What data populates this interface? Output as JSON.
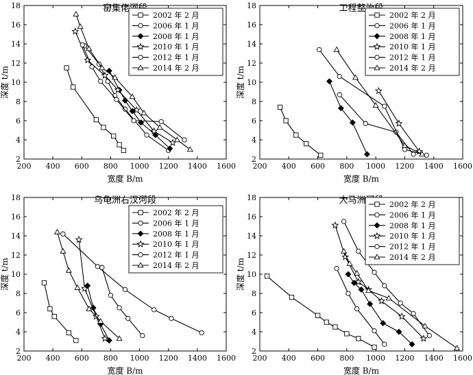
{
  "chart_data": [
    {
      "type": "line",
      "title": "窑集佬河段",
      "xlabel": "宽度 B/m",
      "ylabel": "深度 t/m",
      "xlim": [
        200,
        1600
      ],
      "ylim": [
        2,
        18
      ],
      "xticks": [
        "200",
        "400",
        "600",
        "800",
        "1000",
        "1200",
        "1400",
        "1600"
      ],
      "yticks": [
        "2",
        "4",
        "6",
        "8",
        "10",
        "12",
        "14",
        "16",
        "18"
      ],
      "legend_position": "top-right",
      "series": [
        {
          "name": "2002 年 2 月",
          "marker": "square",
          "x": [
            495,
            540,
            700,
            750,
            820,
            860,
            890
          ],
          "y": [
            11.5,
            9.5,
            6.1,
            5.3,
            4.4,
            3.5,
            2.9
          ]
        },
        {
          "name": "2006 年 1 月",
          "marker": "circle",
          "x": [
            620,
            720,
            780,
            830,
            900,
            1050,
            1200
          ],
          "y": [
            13.8,
            11.9,
            10.1,
            8.6,
            7.2,
            4.5,
            2.9
          ]
        },
        {
          "name": "2008 年 1 月",
          "marker": "diamond",
          "x": [
            790,
            860,
            900,
            950,
            1010,
            1110,
            1210
          ],
          "y": [
            11.2,
            9.2,
            8.1,
            7.0,
            5.8,
            4.5,
            3.1
          ]
        },
        {
          "name": "2010 年 1 月",
          "marker": "star",
          "x": [
            555,
            640,
            760,
            850,
            980,
            1100,
            1230
          ],
          "y": [
            15.3,
            12.3,
            10.7,
            9.2,
            7.1,
            4.9,
            3.7
          ]
        },
        {
          "name": "2012 年 1 月",
          "marker": "circle",
          "x": [
            605,
            670,
            730,
            840,
            960,
            1150,
            1310
          ],
          "y": [
            13.9,
            11.6,
            10.1,
            8.2,
            6.0,
            5.9,
            4.0
          ]
        },
        {
          "name": "2014 年 2 月",
          "marker": "triangle",
          "x": [
            560,
            590,
            650,
            740,
            830,
            950,
            1030,
            1140,
            1260,
            1350
          ],
          "y": [
            17.1,
            15.8,
            13.5,
            11.5,
            10.5,
            8.5,
            6.8,
            5.3,
            4.0,
            3.0
          ]
        }
      ]
    },
    {
      "type": "line",
      "title": "工程整治段",
      "xlabel": "宽度 B/m",
      "ylabel": "深度 t/m",
      "xlim": [
        200,
        1600
      ],
      "ylim": [
        2,
        18
      ],
      "xticks": [
        "200",
        "400",
        "600",
        "800",
        "1000",
        "1200",
        "1400",
        "1600"
      ],
      "yticks": [
        "2",
        "4",
        "6",
        "8",
        "10",
        "12",
        "14",
        "16",
        "18"
      ],
      "legend_position": "top-right",
      "series": [
        {
          "name": "2002 年 2 月",
          "marker": "square",
          "x": [
            340,
            380,
            450,
            520,
            620
          ],
          "y": [
            7.4,
            6.0,
            4.5,
            3.6,
            2.4
          ]
        },
        {
          "name": "2006 年 1 月",
          "marker": "circle",
          "x": [
            750,
            930,
            1140,
            1260
          ],
          "y": [
            8.7,
            5.7,
            4.8,
            2.5
          ]
        },
        {
          "name": "2008 年 1 月",
          "marker": "diamond",
          "x": [
            680,
            760,
            840,
            940
          ],
          "y": [
            10.1,
            7.3,
            5.8,
            2.5
          ]
        },
        {
          "name": "2010 年 1 月",
          "marker": "star",
          "x": [
            1020,
            1160,
            1300
          ],
          "y": [
            9.1,
            5.7,
            2.8
          ]
        },
        {
          "name": "2012 年 1 月",
          "marker": "circle",
          "x": [
            610,
            750,
            1060,
            1200,
            1350
          ],
          "y": [
            13.4,
            10.6,
            7.5,
            3.0,
            2.4
          ]
        },
        {
          "name": "2014 年 2 月",
          "marker": "triangle",
          "x": [
            730,
            860,
            1000,
            1200,
            1320
          ],
          "y": [
            13.4,
            10.5,
            7.6,
            3.4,
            2.5
          ]
        }
      ]
    },
    {
      "type": "line",
      "title": "乌龟洲右汊河段",
      "xlabel": "宽度 B/m",
      "ylabel": "深度 t/m",
      "xlim": [
        200,
        1600
      ],
      "ylim": [
        2,
        18
      ],
      "xticks": [
        "200",
        "400",
        "600",
        "800",
        "1000",
        "1200",
        "1400",
        "1600"
      ],
      "yticks": [
        "2",
        "4",
        "6",
        "8",
        "10",
        "12",
        "14",
        "16",
        "18"
      ],
      "legend_position": "top-right",
      "series": [
        {
          "name": "2002 年 2 月",
          "marker": "square",
          "x": [
            340,
            380,
            410,
            510,
            560
          ],
          "y": [
            9.1,
            6.4,
            5.6,
            3.9,
            3.1
          ]
        },
        {
          "name": "2006 年 1 月",
          "marker": "circle",
          "x": [
            470,
            710,
            900,
            1100,
            1220,
            1430
          ],
          "y": [
            14.2,
            10.8,
            8.4,
            6.3,
            5.4,
            3.9
          ]
        },
        {
          "name": "2008 年 1 月",
          "marker": "diamond",
          "x": [
            640,
            680,
            730,
            790
          ],
          "y": [
            8.8,
            6.5,
            4.8,
            3.1
          ]
        },
        {
          "name": "2010 年 1 月",
          "marker": "star",
          "x": [
            580,
            620,
            700,
            760
          ],
          "y": [
            13.6,
            8.5,
            5.6,
            3.3
          ]
        },
        {
          "name": "2012 年 1 月",
          "marker": "circle",
          "x": [
            740,
            800,
            860,
            920,
            1020
          ],
          "y": [
            10.7,
            7.8,
            6.5,
            5.4,
            3.6
          ]
        },
        {
          "name": "2014 年 2 月",
          "marker": "triangle",
          "x": [
            430,
            470,
            510,
            570,
            650,
            730,
            860
          ],
          "y": [
            14.4,
            12.4,
            10.4,
            8.6,
            6.4,
            5.1,
            3.3
          ]
        }
      ]
    },
    {
      "type": "line",
      "title": "大马洲河段",
      "xlabel": "宽度 B/m",
      "ylabel": "深度 t/m",
      "xlim": [
        200,
        1600
      ],
      "ylim": [
        2,
        18
      ],
      "xticks": [
        "200",
        "400",
        "600",
        "800",
        "1000",
        "1200",
        "1400",
        "1600"
      ],
      "yticks": [
        "2",
        "4",
        "6",
        "8",
        "10",
        "12",
        "14",
        "16",
        "18"
      ],
      "legend_position": "top-right",
      "series": [
        {
          "name": "2002 年 2 月",
          "marker": "square",
          "x": [
            250,
            420,
            600,
            660,
            720,
            800,
            880,
            990
          ],
          "y": [
            9.8,
            7.6,
            5.7,
            5.0,
            4.5,
            3.8,
            3.3,
            2.4
          ]
        },
        {
          "name": "2006 年 1 月",
          "marker": "circle",
          "x": [
            730,
            810,
            870,
            990,
            1060
          ],
          "y": [
            10.6,
            8.0,
            6.4,
            4.1,
            2.7
          ]
        },
        {
          "name": "2008 年 1 月",
          "marker": "diamond",
          "x": [
            810,
            850,
            900,
            960,
            1050,
            1160,
            1250
          ],
          "y": [
            10.0,
            9.1,
            8.4,
            6.9,
            4.9,
            4.0,
            2.7
          ]
        },
        {
          "name": "2010 年 1 月",
          "marker": "star",
          "x": [
            720,
            790,
            880,
            950,
            1040,
            1180,
            1330
          ],
          "y": [
            15.1,
            11.8,
            9.2,
            8.4,
            7.2,
            5.6,
            3.3
          ]
        },
        {
          "name": "2012 年 1 月",
          "marker": "circle",
          "x": [
            780,
            880,
            990,
            1060,
            1170,
            1260,
            1370
          ],
          "y": [
            15.5,
            12.4,
            10.2,
            8.8,
            7.0,
            5.9,
            3.6
          ]
        },
        {
          "name": "2014 年 2 月",
          "marker": "triangle",
          "x": [
            780,
            820,
            870,
            950,
            1090,
            1340,
            1560
          ],
          "y": [
            12.4,
            11.1,
            10.1,
            8.3,
            7.5,
            4.6,
            2.3
          ]
        }
      ]
    }
  ]
}
